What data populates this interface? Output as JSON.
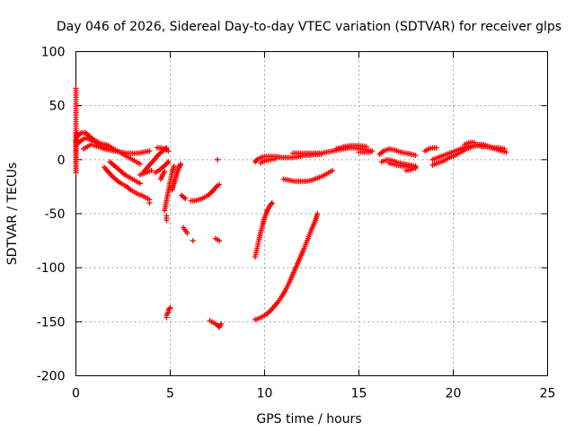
{
  "chart_data": {
    "type": "scatter",
    "title": "Day 046 of 2026, Sidereal Day-to-day VTEC variation (SDTVAR) for receiver glps",
    "xlabel": "GPS time / hours",
    "ylabel": "SDTVAR / TECUs",
    "xlim": [
      0,
      25
    ],
    "ylim": [
      -200,
      100
    ],
    "xticks": [
      0,
      5,
      10,
      15,
      20,
      25
    ],
    "yticks": [
      -200,
      -150,
      -100,
      -50,
      0,
      50,
      100
    ],
    "grid": true,
    "marker": "+",
    "series": [
      {
        "name": "SDTVAR",
        "color": "#ff0000",
        "segments": [
          [
            [
              0.0,
              66
            ],
            [
              0.0,
              -12
            ],
            [
              0.0,
              18
            ],
            [
              0.05,
              24
            ]
          ],
          [
            [
              0.1,
              22
            ],
            [
              0.3,
              25
            ],
            [
              0.5,
              25
            ],
            [
              0.7,
              22
            ],
            [
              0.9,
              19
            ],
            [
              1.1,
              17
            ],
            [
              1.3,
              15
            ],
            [
              1.5,
              14
            ],
            [
              1.7,
              13
            ],
            [
              1.9,
              11
            ]
          ],
          [
            [
              0.1,
              15
            ],
            [
              0.3,
              18
            ],
            [
              0.5,
              20
            ],
            [
              0.7,
              19
            ],
            [
              0.9,
              17
            ],
            [
              1.1,
              15
            ],
            [
              1.3,
              13
            ],
            [
              1.5,
              11
            ],
            [
              1.7,
              10
            ],
            [
              2.0,
              8
            ]
          ],
          [
            [
              0.4,
              10
            ],
            [
              0.6,
              12
            ],
            [
              0.8,
              14
            ],
            [
              1.0,
              13
            ],
            [
              1.2,
              12
            ],
            [
              1.5,
              10
            ],
            [
              1.8,
              9
            ],
            [
              2.1,
              8
            ],
            [
              2.4,
              7
            ],
            [
              2.7,
              6
            ],
            [
              3.0,
              6
            ],
            [
              3.3,
              6
            ],
            [
              3.6,
              7
            ],
            [
              3.9,
              8
            ]
          ],
          [
            [
              1.6,
              14
            ],
            [
              1.8,
              12
            ],
            [
              2.0,
              10
            ],
            [
              2.2,
              8
            ],
            [
              2.4,
              6
            ],
            [
              2.6,
              4
            ],
            [
              2.8,
              2
            ],
            [
              3.0,
              0
            ],
            [
              3.2,
              -2
            ],
            [
              3.4,
              -4
            ]
          ],
          [
            [
              1.8,
              -2
            ],
            [
              2.0,
              -5
            ],
            [
              2.2,
              -8
            ],
            [
              2.4,
              -11
            ],
            [
              2.6,
              -14
            ],
            [
              2.8,
              -16
            ],
            [
              3.0,
              -18
            ],
            [
              3.2,
              -20
            ],
            [
              3.4,
              -22
            ]
          ],
          [
            [
              1.5,
              -7
            ],
            [
              1.7,
              -11
            ],
            [
              1.9,
              -15
            ],
            [
              2.1,
              -18
            ],
            [
              2.3,
              -21
            ],
            [
              2.5,
              -23
            ],
            [
              2.7,
              -25
            ],
            [
              2.9,
              -28
            ],
            [
              3.1,
              -30
            ],
            [
              3.3,
              -32
            ],
            [
              3.5,
              -33
            ],
            [
              3.7,
              -35
            ],
            [
              3.9,
              -37
            ]
          ],
          [
            [
              3.9,
              -40
            ]
          ],
          [
            [
              3.6,
              -11
            ],
            [
              3.8,
              -7
            ],
            [
              4.0,
              -3
            ],
            [
              4.2,
              1
            ],
            [
              4.4,
              5
            ],
            [
              4.6,
              8
            ],
            [
              4.8,
              11
            ]
          ],
          [
            [
              4.2,
              -12
            ],
            [
              4.4,
              -10
            ],
            [
              4.6,
              -7
            ],
            [
              4.8,
              -4
            ],
            [
              4.9,
              -2
            ]
          ],
          [
            [
              3.4,
              -14
            ],
            [
              3.7,
              -12
            ],
            [
              4.0,
              -10
            ]
          ],
          [
            [
              4.3,
              11
            ],
            [
              4.5,
              11
            ],
            [
              4.7,
              10
            ],
            [
              4.9,
              8
            ]
          ],
          [
            [
              4.5,
              -18
            ],
            [
              4.6,
              -14
            ],
            [
              4.7,
              -11
            ]
          ],
          [
            [
              4.7,
              -47
            ],
            [
              4.8,
              -38
            ],
            [
              4.9,
              -29
            ],
            [
              5.0,
              -20
            ],
            [
              5.1,
              -12
            ],
            [
              5.2,
              -6
            ]
          ],
          [
            [
              5.1,
              -28
            ],
            [
              5.2,
              -22
            ],
            [
              5.3,
              -16
            ],
            [
              5.4,
              -10
            ],
            [
              5.5,
              -6
            ],
            [
              5.55,
              -4
            ]
          ],
          [
            [
              4.8,
              -52
            ],
            [
              4.8,
              -56
            ]
          ],
          [
            [
              4.8,
              -146
            ],
            [
              4.8,
              -144
            ],
            [
              4.9,
              -141
            ],
            [
              4.9,
              -139
            ],
            [
              5.0,
              -137
            ]
          ],
          [
            [
              5.6,
              -33
            ],
            [
              5.8,
              -36
            ]
          ],
          [
            [
              5.7,
              -63
            ],
            [
              5.9,
              -68
            ]
          ],
          [
            [
              6.2,
              -75
            ]
          ],
          [
            [
              6.1,
              -38
            ],
            [
              6.3,
              -38
            ],
            [
              6.5,
              -37
            ],
            [
              6.7,
              -36
            ]
          ],
          [
            [
              6.8,
              -35
            ],
            [
              7.0,
              -33
            ],
            [
              7.2,
              -30
            ],
            [
              7.4,
              -26
            ],
            [
              7.5,
              -24
            ],
            [
              7.6,
              -23
            ]
          ],
          [
            [
              7.5,
              0
            ]
          ],
          [
            [
              7.4,
              -73
            ],
            [
              7.6,
              -75
            ]
          ],
          [
            [
              7.1,
              -149
            ],
            [
              7.3,
              -151
            ],
            [
              7.5,
              -153
            ],
            [
              7.6,
              -155
            ],
            [
              7.7,
              -152
            ]
          ],
          [
            [
              9.5,
              -90
            ],
            [
              9.6,
              -82
            ],
            [
              9.7,
              -74
            ],
            [
              9.8,
              -67
            ],
            [
              9.9,
              -60
            ],
            [
              10.0,
              -54
            ],
            [
              10.1,
              -49
            ],
            [
              10.2,
              -45
            ],
            [
              10.3,
              -42
            ],
            [
              10.4,
              -40
            ]
          ],
          [
            [
              9.5,
              -148
            ],
            [
              9.7,
              -147
            ],
            [
              9.9,
              -145
            ],
            [
              10.1,
              -143
            ],
            [
              10.3,
              -140
            ],
            [
              10.5,
              -136
            ],
            [
              10.7,
              -132
            ],
            [
              10.9,
              -127
            ],
            [
              11.1,
              -121
            ],
            [
              11.3,
              -114
            ],
            [
              11.5,
              -106
            ],
            [
              11.7,
              -98
            ],
            [
              11.9,
              -90
            ],
            [
              12.1,
              -82
            ],
            [
              12.3,
              -73
            ],
            [
              12.5,
              -64
            ],
            [
              12.7,
              -56
            ],
            [
              12.8,
              -50
            ]
          ],
          [
            [
              9.5,
              -2
            ],
            [
              9.6,
              0
            ],
            [
              9.8,
              2
            ],
            [
              10.0,
              3
            ],
            [
              10.3,
              3
            ],
            [
              10.6,
              3
            ],
            [
              10.9,
              2
            ],
            [
              11.2,
              2
            ],
            [
              11.5,
              2
            ],
            [
              11.8,
              3
            ],
            [
              12.1,
              4
            ],
            [
              12.4,
              4
            ],
            [
              12.7,
              5
            ],
            [
              13.0,
              5
            ]
          ],
          [
            [
              9.8,
              -3
            ],
            [
              10.0,
              -1
            ],
            [
              10.3,
              0
            ],
            [
              10.6,
              1
            ]
          ],
          [
            [
              11.0,
              -18
            ],
            [
              11.3,
              -19
            ],
            [
              11.6,
              -20
            ],
            [
              11.9,
              -20
            ],
            [
              12.2,
              -20
            ],
            [
              12.5,
              -19
            ],
            [
              12.8,
              -17
            ],
            [
              13.1,
              -15
            ],
            [
              13.4,
              -12
            ],
            [
              13.6,
              -10
            ]
          ],
          [
            [
              11.5,
              6
            ],
            [
              11.8,
              6
            ],
            [
              12.1,
              6
            ],
            [
              12.4,
              6
            ],
            [
              12.7,
              6
            ],
            [
              13.0,
              6
            ],
            [
              13.3,
              7
            ],
            [
              13.6,
              8
            ],
            [
              13.9,
              9
            ],
            [
              14.2,
              10
            ],
            [
              14.5,
              11
            ],
            [
              14.8,
              11
            ],
            [
              15.1,
              10
            ],
            [
              15.4,
              9
            ],
            [
              15.7,
              8
            ]
          ],
          [
            [
              13.8,
              10
            ],
            [
              14.2,
              12
            ],
            [
              14.6,
              13
            ],
            [
              15.0,
              13
            ],
            [
              15.4,
              12
            ]
          ],
          [
            [
              15.0,
              7
            ],
            [
              15.3,
              7
            ],
            [
              15.6,
              7
            ]
          ],
          [
            [
              16.1,
              5
            ],
            [
              16.3,
              8
            ],
            [
              16.6,
              10
            ],
            [
              16.9,
              9
            ],
            [
              17.2,
              7
            ],
            [
              17.5,
              6
            ],
            [
              17.8,
              5
            ],
            [
              18.0,
              4
            ]
          ],
          [
            [
              16.2,
              -2
            ],
            [
              16.5,
              0
            ],
            [
              16.8,
              -1
            ],
            [
              17.1,
              -3
            ],
            [
              17.4,
              -4
            ],
            [
              17.7,
              -5
            ],
            [
              18.0,
              -6
            ]
          ],
          [
            [
              16.6,
              -3
            ],
            [
              17.0,
              -5
            ],
            [
              17.4,
              -6
            ],
            [
              17.7,
              -7
            ],
            [
              18.0,
              -8
            ]
          ],
          [
            [
              17.5,
              -10
            ],
            [
              17.8,
              -9
            ],
            [
              18.0,
              -7
            ]
          ],
          [
            [
              18.5,
              8
            ],
            [
              18.7,
              10
            ],
            [
              18.9,
              11
            ],
            [
              19.1,
              11
            ]
          ],
          [
            [
              18.9,
              0
            ],
            [
              19.2,
              2
            ],
            [
              19.5,
              4
            ],
            [
              19.8,
              6
            ],
            [
              20.1,
              8
            ],
            [
              20.4,
              10
            ],
            [
              20.7,
              12
            ],
            [
              21.0,
              13
            ],
            [
              21.3,
              13
            ],
            [
              21.6,
              13
            ],
            [
              21.9,
              12
            ],
            [
              22.2,
              11
            ],
            [
              22.5,
              9
            ],
            [
              22.8,
              7
            ]
          ],
          [
            [
              18.9,
              -5
            ],
            [
              19.2,
              -3
            ],
            [
              19.5,
              -1
            ],
            [
              19.8,
              2
            ],
            [
              20.1,
              4
            ],
            [
              20.4,
              7
            ],
            [
              20.7,
              10
            ],
            [
              21.0,
              12
            ],
            [
              21.3,
              14
            ],
            [
              21.6,
              14
            ],
            [
              21.9,
              12
            ],
            [
              22.2,
              10
            ],
            [
              22.6,
              8
            ]
          ],
          [
            [
              20.6,
              14
            ],
            [
              20.9,
              16
            ],
            [
              21.1,
              16
            ]
          ],
          [
            [
              21.5,
              12
            ],
            [
              21.8,
              12
            ],
            [
              22.1,
              11
            ],
            [
              22.4,
              11
            ],
            [
              22.7,
              10
            ]
          ]
        ]
      }
    ]
  }
}
